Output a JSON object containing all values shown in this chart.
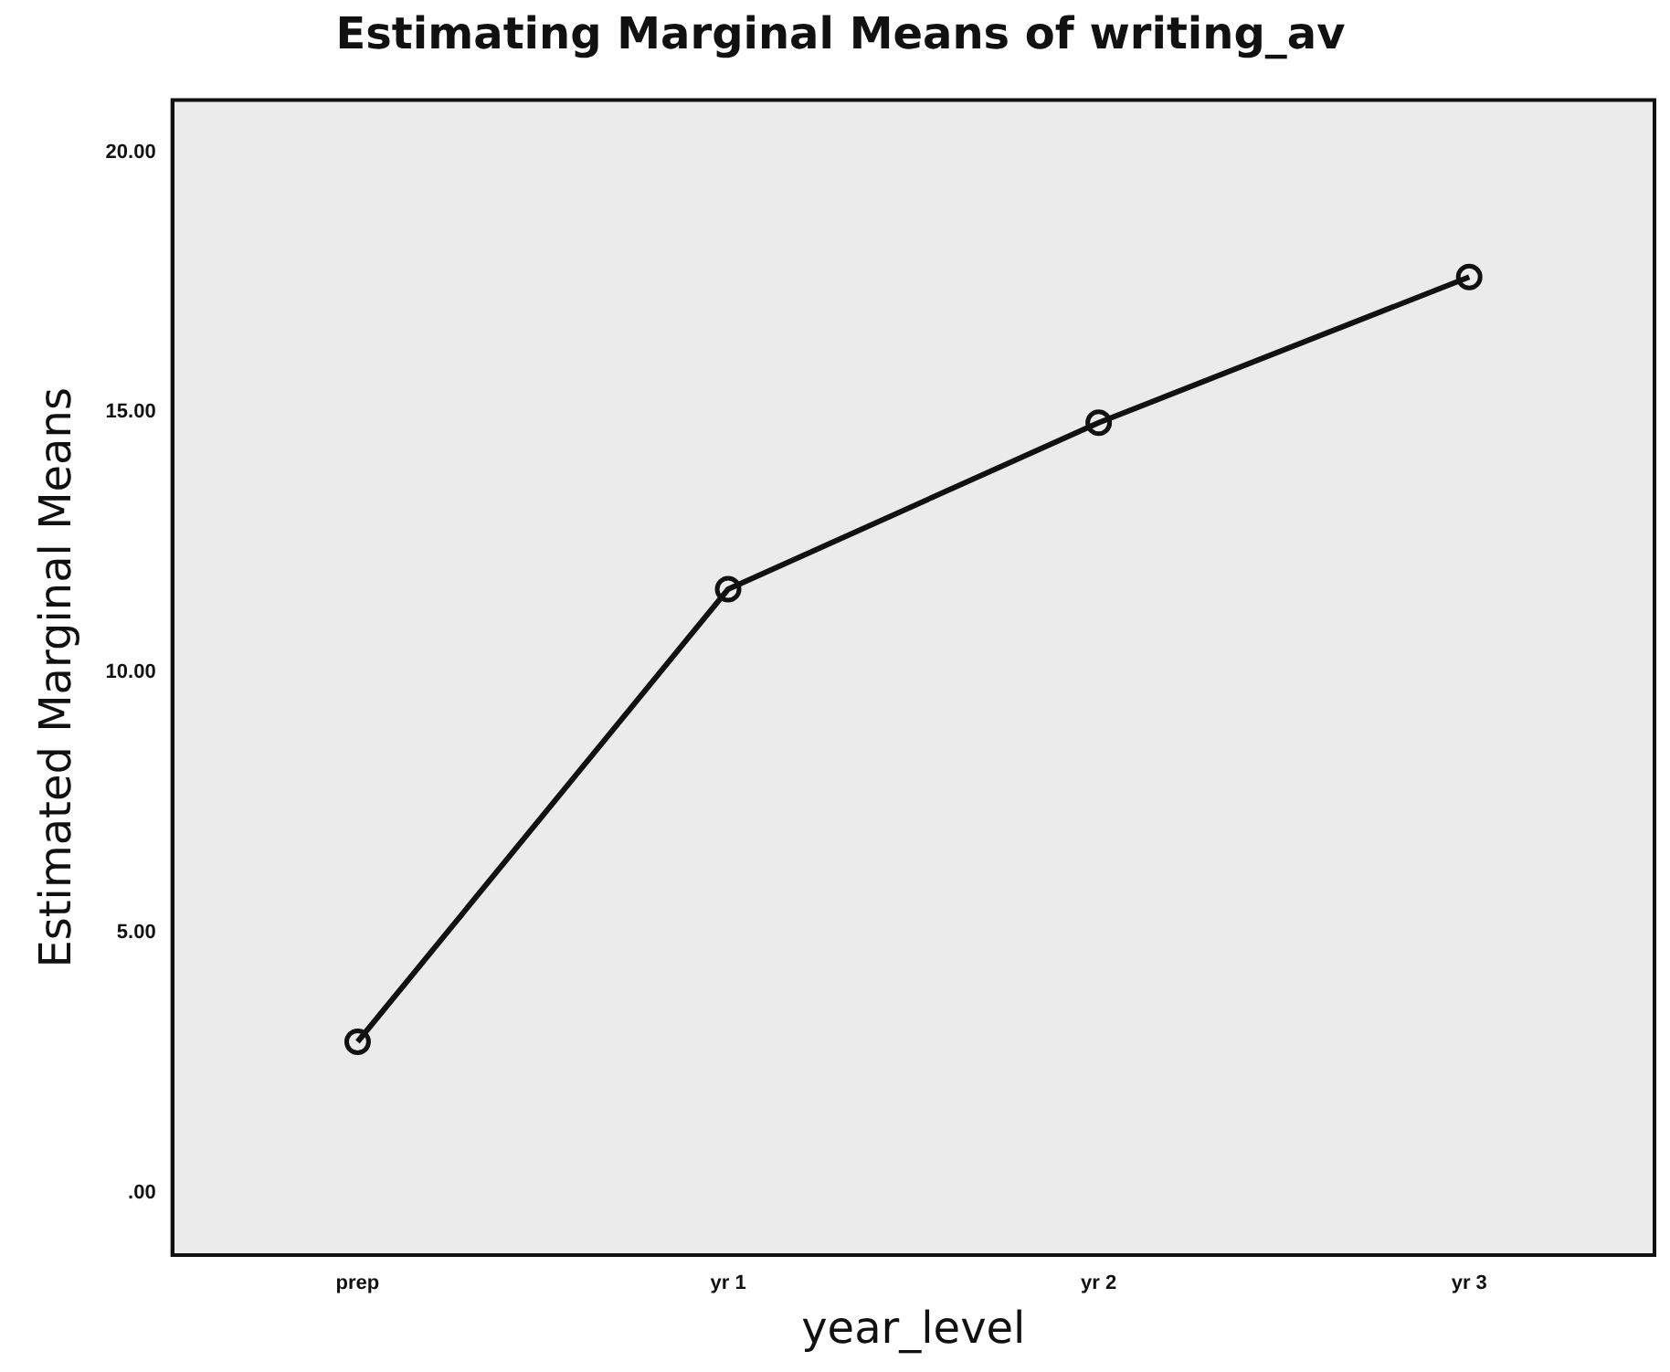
{
  "chart_data": {
    "type": "line",
    "title": "Estimating Marginal Means of writing_av",
    "xlabel": "year_level",
    "ylabel": "Estimated Marginal Means",
    "categories": [
      "prep",
      "yr 1",
      "yr 2",
      "yr 3"
    ],
    "series": [
      {
        "color": "#111111",
        "values": [
          2.9,
          11.6,
          14.8,
          17.6
        ]
      }
    ],
    "ylim": [
      -1.2,
      21
    ],
    "yticks": [
      {
        "value": 0,
        "label": ".00"
      },
      {
        "value": 5,
        "label": "5.00"
      },
      {
        "value": 10,
        "label": "10.00"
      },
      {
        "value": 15,
        "label": "15.00"
      },
      {
        "value": 20,
        "label": "20.00"
      }
    ],
    "grid": false,
    "legend": false,
    "marker": "circle",
    "line_style": "solid"
  }
}
